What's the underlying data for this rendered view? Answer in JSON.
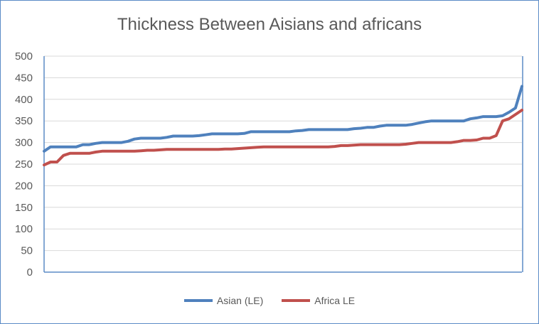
{
  "chart_data": {
    "type": "line",
    "title": "Thickness Between Aisians and africans",
    "xlabel": "",
    "ylabel": "",
    "ylim": [
      0,
      500
    ],
    "yticks": [
      0,
      50,
      100,
      150,
      200,
      250,
      300,
      350,
      400,
      450,
      500
    ],
    "grid": "horizontal",
    "legend_position": "bottom",
    "series": [
      {
        "name": "Asian (LE)",
        "color": "#4f81bd",
        "values": [
          280,
          290,
          290,
          290,
          290,
          290,
          295,
          295,
          298,
          300,
          300,
          300,
          300,
          303,
          308,
          310,
          310,
          310,
          310,
          312,
          315,
          315,
          315,
          315,
          316,
          318,
          320,
          320,
          320,
          320,
          320,
          321,
          325,
          325,
          325,
          325,
          325,
          325,
          325,
          327,
          328,
          330,
          330,
          330,
          330,
          330,
          330,
          330,
          332,
          333,
          335,
          335,
          338,
          340,
          340,
          340,
          340,
          342,
          345,
          348,
          350,
          350,
          350,
          350,
          350,
          350,
          355,
          357,
          360,
          360,
          360,
          362,
          370,
          380,
          430
        ]
      },
      {
        "name": "Africa LE",
        "color": "#c0504d",
        "values": [
          248,
          255,
          255,
          270,
          275,
          275,
          275,
          275,
          278,
          280,
          280,
          280,
          280,
          280,
          280,
          281,
          282,
          282,
          283,
          284,
          284,
          284,
          284,
          284,
          284,
          284,
          284,
          284,
          285,
          285,
          286,
          287,
          288,
          289,
          290,
          290,
          290,
          290,
          290,
          290,
          290,
          290,
          290,
          290,
          290,
          291,
          293,
          293,
          294,
          295,
          295,
          295,
          295,
          295,
          295,
          295,
          296,
          298,
          300,
          300,
          300,
          300,
          300,
          300,
          302,
          305,
          305,
          306,
          310,
          310,
          316,
          350,
          355,
          365,
          375
        ]
      }
    ]
  }
}
